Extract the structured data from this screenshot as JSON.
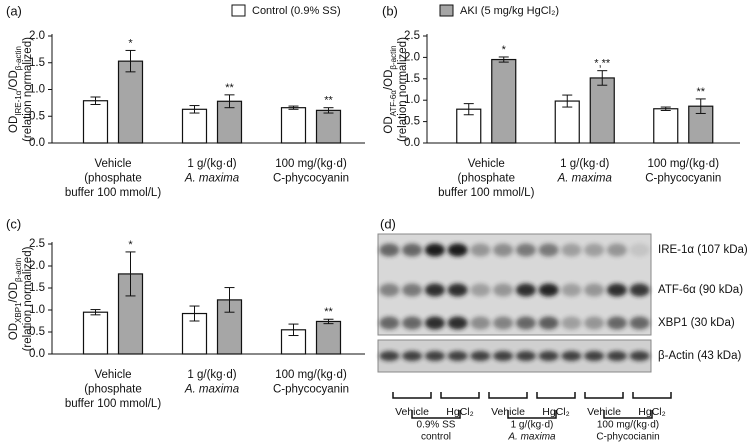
{
  "chart_data": [
    {
      "type": "bar",
      "panel_label": "(a)",
      "y_label": [
        "OD",
        "IRE-1α",
        "/OD",
        "β-actin"
      ],
      "y_label_2": "(relation normalized)",
      "categories": [
        [
          "Vehicle",
          "(phosphate",
          "buffer 100 mmol/L)"
        ],
        [
          "1 g/(kg·d)",
          "A. maxima"
        ],
        [
          "100 mg/(kg·d)",
          "C-phycocyanin"
        ]
      ],
      "series": [
        {
          "name": "Control (0.9% SS)",
          "color": "#ffffff",
          "values": [
            0.79,
            0.63,
            0.66
          ],
          "errors": [
            0.07,
            0.07,
            0.03
          ]
        },
        {
          "name": "AKI (5 mg/kg HgCl₂)",
          "color": "#a6a6a6",
          "values": [
            1.53,
            0.78,
            0.61
          ],
          "errors": [
            0.2,
            0.12,
            0.05
          ],
          "annotations": [
            "*",
            "**",
            "**"
          ]
        }
      ],
      "ylim": [
        0,
        2.0
      ],
      "yticks": [
        {
          "value": 0,
          "label": "0.0"
        },
        0.5,
        {
          "value": 1,
          "label": "1.0"
        },
        1.5,
        {
          "value": 2,
          "label": "2.0"
        }
      ]
    },
    {
      "type": "bar",
      "panel_label": "(b)",
      "y_label": [
        "OD",
        "ATF-6α",
        "/OD",
        "β-actin"
      ],
      "y_label_2": "(relation normalized)",
      "categories": [
        [
          "Vehicle",
          "(phosphate",
          "buffer 100 mmol/L)"
        ],
        [
          "1 g/(kg·d)",
          "A. maxima"
        ],
        [
          "100 mg/(kg·d)",
          "C-phycocyanin"
        ]
      ],
      "series": [
        {
          "color": "#ffffff",
          "values": [
            0.79,
            0.98,
            0.8
          ],
          "errors": [
            0.13,
            0.14,
            0.04
          ]
        },
        {
          "color": "#a6a6a6",
          "values": [
            1.95,
            1.52,
            0.86
          ],
          "errors": [
            0.06,
            0.17,
            0.17
          ],
          "annotations": [
            "*",
            "*,**",
            "**"
          ]
        }
      ],
      "ylim": [
        0,
        2.5
      ],
      "yticks": [
        {
          "value": 0,
          "label": "0.0"
        },
        0.5,
        {
          "value": 1,
          "label": "1.0"
        },
        1.5,
        {
          "value": 2,
          "label": "2.0"
        },
        2.5
      ]
    },
    {
      "type": "bar",
      "panel_label": "(c)",
      "y_label": [
        "OD",
        "XBP1",
        "/OD",
        "β-actin"
      ],
      "y_label_2": "(relation normalized)",
      "categories": [
        [
          "Vehicle",
          "(phosphate",
          "buffer 100 mmol/L)"
        ],
        [
          "1 g/(kg·d)",
          "A. maxima"
        ],
        [
          "100 mg/(kg·d)",
          "C-phycocyanin"
        ]
      ],
      "series": [
        {
          "color": "#ffffff",
          "values": [
            0.95,
            0.92,
            0.55
          ],
          "errors": [
            0.06,
            0.17,
            0.13
          ]
        },
        {
          "color": "#a6a6a6",
          "values": [
            1.82,
            1.23,
            0.74
          ],
          "errors": [
            0.5,
            0.28,
            0.05
          ],
          "annotations": [
            "*",
            null,
            "**"
          ]
        }
      ],
      "ylim": [
        0,
        2.5
      ],
      "yticks": [
        {
          "value": 0,
          "label": "0.0"
        },
        0.5,
        {
          "value": 1,
          "label": "1.0"
        },
        1.5,
        {
          "value": 2,
          "label": "2.0"
        },
        2.5
      ]
    }
  ],
  "blot": {
    "panel_label": "(d)",
    "bands": [
      "IRE-1α (107 kDa)",
      "ATF-6α (90 kDa)",
      "XBP1 (30 kDa)",
      "β-Actin (43 kDa)"
    ],
    "lanes": [
      "Vehicle",
      "HgCl₂",
      "Vehicle",
      "HgCl₂",
      "Vehicle",
      "HgCl₂"
    ],
    "groups": [
      [
        "0.9% SS",
        "control"
      ],
      [
        "1 g/(kg·d)",
        "A. maxima"
      ],
      [
        "100 mg/(kg·d)",
        "C-phycocianin"
      ]
    ]
  }
}
